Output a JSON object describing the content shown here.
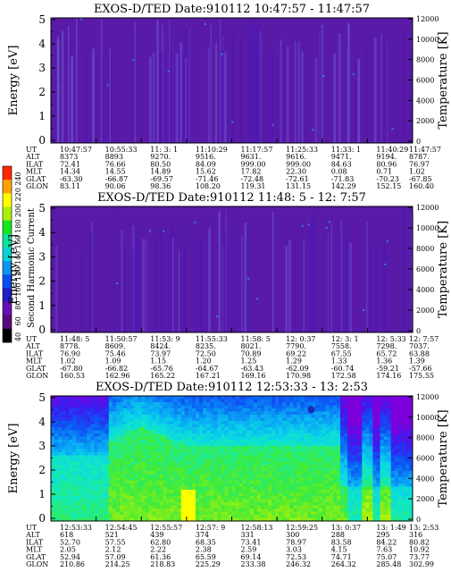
{
  "colorbar": {
    "label": "Second Harmonic Current",
    "ticks": [
      "40",
      "60",
      "80",
      "100",
      "120",
      "140",
      "160",
      "180",
      "200",
      "220",
      "240"
    ],
    "colors": [
      "#000000",
      "#5a0a78",
      "#6a0fb4",
      "#2020c8",
      "#0a50f0",
      "#0a96f0",
      "#0ad2d2",
      "#0ae6a0",
      "#14e61e",
      "#aaf00a",
      "#ffff00",
      "#ffa000",
      "#ff2800"
    ]
  },
  "chart_data": [
    {
      "type": "heatmap",
      "title": "EXOS-D/TED   Date:910112   10:47:57 - 11:47:57",
      "ylabel": "Energy [eV]",
      "y2label": "Temperature [K]",
      "ylim": [
        0,
        5
      ],
      "y2lim": [
        0,
        12000
      ],
      "yticks": [
        "0",
        "1",
        "2",
        "3",
        "4",
        "5"
      ],
      "y2ticks": [
        "0",
        "2000",
        "4000",
        "6000",
        "8000",
        "10000",
        "12000"
      ],
      "rows": [
        "UT",
        "ALT",
        "ILAT",
        "MLT",
        "GLAT",
        "GLON"
      ],
      "columns": [
        [
          "10:47:57",
          "8373",
          "72.41",
          "14.34",
          "-63.30",
          "83.11"
        ],
        [
          "10:55:33",
          "8893",
          "76.66",
          "14.55",
          "-66.87",
          "90.06"
        ],
        [
          "11: 3: 1",
          "9270.",
          "80.50",
          "14.89",
          "-69.57",
          "98.36"
        ],
        [
          "11:10:29",
          "9516.",
          "84.09",
          "15.62",
          "-71.46",
          "108.20"
        ],
        [
          "11:17:57",
          "9631.",
          "999.00",
          "17.82",
          "-72.48",
          "119.31"
        ],
        [
          "11:25:33",
          "9616.",
          "999.00",
          "22.30",
          "-72.61",
          "131.15"
        ],
        [
          "11:33: 1",
          "9471.",
          "84.63",
          "0.08",
          "-71.83",
          "142.29"
        ],
        [
          "11:40:29",
          "9194.",
          "80.96",
          "0.71",
          "-70.23",
          "152.15"
        ],
        [
          "11:47:57",
          "8787.",
          "76.97",
          "1.02",
          "-67.85",
          "160.40"
        ]
      ]
    },
    {
      "type": "heatmap",
      "title": "EXOS-D/TED   Date:910112   11:48: 5 - 12: 7:57",
      "ylabel": "Energy [eV]",
      "y2label": "Temperature [K]",
      "ylim": [
        0,
        5
      ],
      "y2lim": [
        0,
        12000
      ],
      "yticks": [
        "0",
        "1",
        "2",
        "3",
        "4",
        "5"
      ],
      "y2ticks": [
        "0",
        "2000",
        "4000",
        "6000",
        "8000",
        "10000",
        "12000"
      ],
      "rows": [
        "UT",
        "ALT",
        "ILAT",
        "MLT",
        "GLAT",
        "GLON"
      ],
      "columns": [
        [
          "11:48: 5",
          "8778.",
          "76.90",
          "1.02",
          "-67.80",
          "160.53"
        ],
        [
          "11:50:57",
          "8609.",
          "75.46",
          "1.09",
          "-66.82",
          "162.96"
        ],
        [
          "11:53: 9",
          "8424.",
          "73.97",
          "1.15",
          "-65.76",
          "165.22"
        ],
        [
          "11:55:33",
          "8235.",
          "72.50",
          "1.20",
          "-64.67",
          "167.21"
        ],
        [
          "11:58: 5",
          "8021.",
          "70.89",
          "1.25",
          "-63.43",
          "169.16"
        ],
        [
          "12: 0:37",
          "7790.",
          "69.22",
          "1.29",
          "-62.09",
          "170.98"
        ],
        [
          "12: 3: 1",
          "7558.",
          "67.55",
          "1.33",
          "-60.74",
          "172.58"
        ],
        [
          "12: 5:33",
          "7298.",
          "65.72",
          "1.36",
          "-59.21",
          "174.16"
        ],
        [
          "12: 7:57",
          "7037.",
          "63.88",
          "1.39",
          "-57.66",
          "175.55"
        ]
      ]
    },
    {
      "type": "heatmap",
      "title": "EXOS-D/TED   Date:910112   12:53:33 - 13: 2:53",
      "ylabel": "Energy [eV]",
      "y2label": "Temperature [K]",
      "ylim": [
        0,
        5
      ],
      "y2lim": [
        0,
        12000
      ],
      "yticks": [
        "0",
        "1",
        "2",
        "3",
        "4",
        "5"
      ],
      "y2ticks": [
        "0",
        "2000",
        "4000",
        "6000",
        "8000",
        "10000",
        "12000"
      ],
      "rows": [
        "UT",
        "ALT",
        "ILAT",
        "MLT",
        "GLAT",
        "GLON"
      ],
      "columns": [
        [
          "12:53:33",
          "618",
          "52.70",
          "2.05",
          "52.94",
          "210.86"
        ],
        [
          "12:54:45",
          "521",
          "57.55",
          "2.12",
          "57.09",
          "214.25"
        ],
        [
          "12:55:57",
          "439",
          "62.80",
          "2.22",
          "61.36",
          "218.83"
        ],
        [
          "12:57: 9",
          "374",
          "68.35",
          "2.38",
          "65.59",
          "225.29"
        ],
        [
          "12:58:13",
          "331",
          "73.41",
          "2.59",
          "69.14",
          "233.38"
        ],
        [
          "12:59:25",
          "300",
          "78.97",
          "3.03",
          "72.53",
          "246.32"
        ],
        [
          "13: 0:37",
          "288",
          "83.58",
          "4.15",
          "74.71",
          "264.32"
        ],
        [
          "13: 1:49",
          "295",
          "84.22",
          "7.63",
          "75.07",
          "285.48"
        ],
        [
          "13: 2:53",
          "316",
          "80.82",
          "10.92",
          "73.77",
          "302.99"
        ]
      ]
    }
  ]
}
